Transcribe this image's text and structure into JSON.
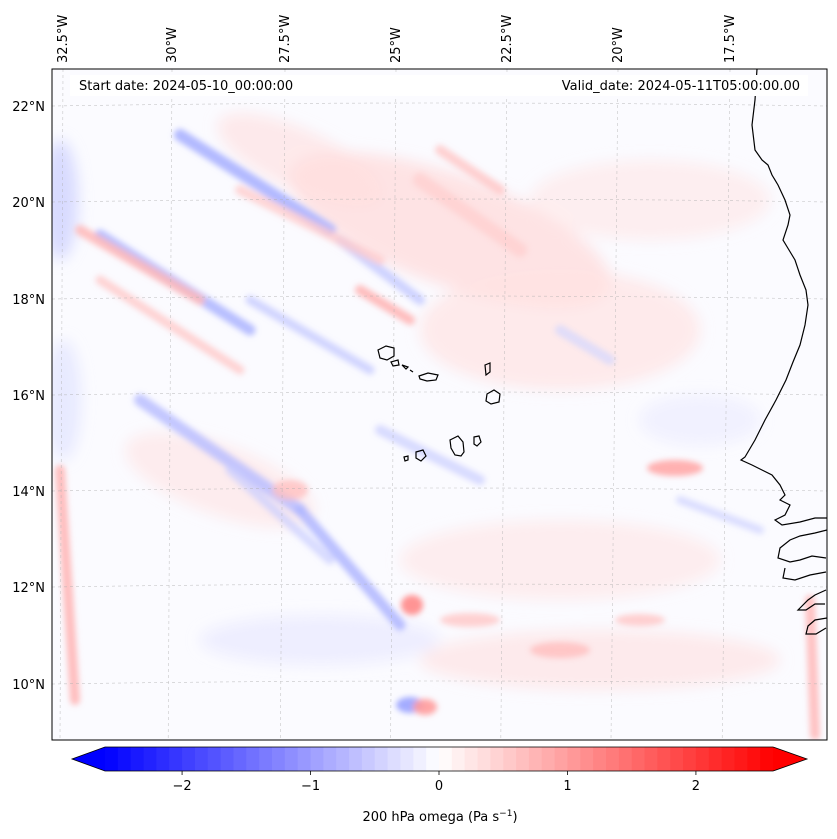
{
  "map": {
    "header": {
      "start_date": "Start date: 2024-05-10_00:00:00",
      "valid_date": "Valid_date: 2024-05-11T05:00:00.00"
    },
    "longitude_labels": [
      "32.5°W",
      "30°W",
      "27.5°W",
      "25°W",
      "22.5°W",
      "20°W",
      "17.5°W"
    ],
    "latitude_labels": [
      "22°N",
      "20°N",
      "18°N",
      "16°N",
      "14°N",
      "12°N",
      "10°N"
    ],
    "field": "200 hPa omega",
    "extent": {
      "lon_min": -32.8,
      "lon_max": -15.3,
      "lat_min": 8.8,
      "lat_max": 22.8
    },
    "features": [
      "Cabo Verde islands",
      "West African coastline (Mauritania, Senegal, Gambia, Guinea-Bissau)"
    ],
    "grid": "dashed graticule"
  },
  "colorbar": {
    "label_main": "200 hPa omega (Pa s",
    "label_exp": "−1",
    "label_close": ")",
    "ticks": [
      "−2",
      "−1",
      "0",
      "1",
      "2"
    ],
    "tick_values": [
      -2,
      -1,
      0,
      1,
      2
    ],
    "range": [
      -2.6,
      2.6
    ],
    "extend": "both",
    "colormap": "bwr",
    "color_low": "#0000ff",
    "color_mid": "#ffffff",
    "color_high": "#ff0000"
  }
}
